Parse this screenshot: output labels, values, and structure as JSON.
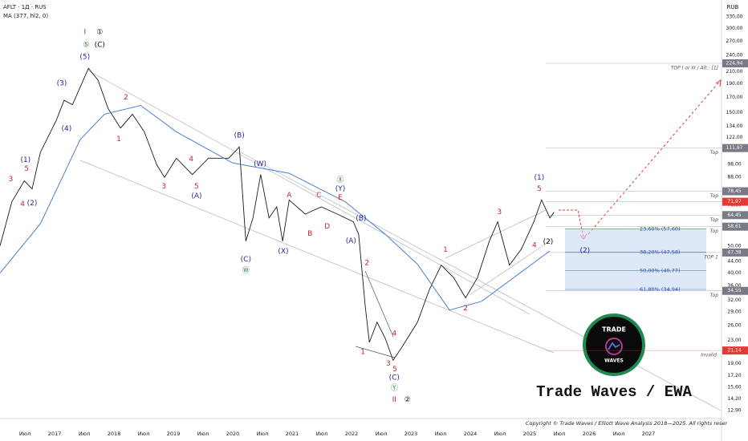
{
  "chart_data": {
    "type": "line",
    "title": "AFLT · 1Д · RUS",
    "currency": "RUB",
    "log": true,
    "xlim": [
      2016.08,
      2028.23
    ],
    "ylim": [
      12.15,
      379
    ],
    "xticks": [
      {
        "value": 2016.5,
        "label": "Июл"
      },
      2017,
      {
        "value": 2017.5,
        "label": "Июл"
      },
      2018,
      {
        "value": 2018.5,
        "label": "Июл"
      },
      2019,
      {
        "value": 2019.5,
        "label": "Июл"
      },
      2020,
      {
        "value": 2020.5,
        "label": "Июл"
      },
      2021,
      {
        "value": 2021.5,
        "label": "Июл"
      },
      2022,
      {
        "value": 2022.5,
        "label": "Июл"
      },
      2023,
      {
        "value": 2023.5,
        "label": "Июл"
      },
      2024,
      {
        "value": 2024.5,
        "label": "Июл"
      },
      2025,
      {
        "value": 2025.5,
        "label": "Июл"
      },
      2026,
      {
        "value": 2026.5,
        "label": "Июл"
      },
      2027
    ],
    "yticks": [
      {
        "value": 330,
        "label": "330,00"
      },
      {
        "value": 300,
        "label": "300,00"
      },
      {
        "value": 270,
        "label": "270,00"
      },
      {
        "value": 240,
        "label": "240,00"
      },
      {
        "value": 210,
        "label": "210,00"
      },
      {
        "value": 190,
        "label": "190,00"
      },
      {
        "value": 170,
        "label": "170,00"
      },
      {
        "value": 150,
        "label": "150,00"
      },
      {
        "value": 134,
        "label": "134,00"
      },
      {
        "value": 122,
        "label": "122,00"
      },
      {
        "value": 98,
        "label": "98,00"
      },
      {
        "value": 88,
        "label": "88,00"
      },
      {
        "value": 70,
        "label": "70,00"
      },
      {
        "value": 50,
        "label": "50,00"
      },
      {
        "value": 44,
        "label": "44,00"
      },
      {
        "value": 40,
        "label": "40,00"
      },
      {
        "value": 36,
        "label": "36,00"
      },
      {
        "value": 32,
        "label": "32,00"
      },
      {
        "value": 29,
        "label": "29,00"
      },
      {
        "value": 26,
        "label": "26,00"
      },
      {
        "value": 23,
        "label": "23,00"
      },
      {
        "value": 19,
        "label": "19,00"
      },
      {
        "value": 17.2,
        "label": "17,20"
      },
      {
        "value": 15.6,
        "label": "15,60"
      },
      {
        "value": 14.2,
        "label": "14,20"
      },
      {
        "value": 12.9,
        "label": "12,90"
      }
    ],
    "series": [
      {
        "color": "#1a1a1a",
        "x": [
          2016.08,
          2016.28,
          2016.49,
          2016.62,
          2016.76,
          2017.03,
          2017.16,
          2017.3,
          2017.57,
          2017.73,
          2017.9,
          2018.11,
          2018.31,
          2018.51,
          2018.72,
          2018.85,
          2019.05,
          2019.32,
          2019.59,
          2019.93,
          2020.11,
          2020.22,
          2020.34,
          2020.47,
          2020.61,
          2020.74,
          2020.84,
          2020.95,
          2021.22,
          2021.49,
          2021.76,
          2022.03,
          2022.12,
          2022.23,
          2022.3,
          2022.43,
          2022.57,
          2022.7,
          2022.84,
          2023.11,
          2023.31,
          2023.51,
          2023.72,
          2023.92,
          2024.12,
          2024.32,
          2024.46,
          2024.66,
          2024.86,
          2025.07,
          2025.2,
          2025.34,
          2025.41
        ],
        "values": [
          50,
          72,
          85.5,
          80,
          108,
          141,
          166,
          160,
          216,
          196,
          155,
          132,
          148,
          128,
          97.6,
          88,
          103,
          90,
          103,
          103,
          113,
          52,
          63,
          90,
          63,
          69,
          52,
          73,
          65,
          69,
          65,
          61,
          55,
          30.6,
          22.6,
          26.7,
          23.3,
          19.5,
          21.6,
          26.7,
          34.9,
          42.7,
          38.5,
          32.6,
          38.5,
          52,
          61,
          42.7,
          48.7,
          61,
          73,
          63,
          66
        ]
      },
      {
        "name": "MA (377, hl2, 0)",
        "color": "#4a7fd4",
        "x": [
          2016.08,
          2016.76,
          2017.43,
          2017.84,
          2018.45,
          2019.05,
          2020.0,
          2020.95,
          2021.89,
          2022.57,
          2023.11,
          2023.65,
          2024.19,
          2024.73,
          2025.34
        ],
        "values": [
          40,
          60,
          120,
          148,
          159,
          128,
          99,
          91,
          72,
          55,
          43,
          29.5,
          31.7,
          38.5,
          48
        ]
      }
    ],
    "levels": [
      {
        "value": 224.94,
        "label": "224,94",
        "note": "TOP I or III / Alt.: [1]",
        "color": "#787b86"
      },
      {
        "value": 111.97,
        "label": "111,97",
        "note": "Top",
        "color": "#787b86"
      },
      {
        "value": 78.45,
        "label": "78,45",
        "note": "Top",
        "color": "#787b86"
      },
      {
        "value": 71.97,
        "label": "71,97",
        "color": "#e53935"
      },
      {
        "value": 64.45,
        "label": "64,45",
        "note": "Top",
        "color": "#787b86"
      },
      {
        "value": 58.61,
        "label": "58,61",
        "note": "Top",
        "color": "#787b86"
      },
      {
        "value": 47.38,
        "label": "47,38",
        "note": "TOP 1",
        "color": "#787b86"
      },
      {
        "value": 34.55,
        "label": "34,55",
        "note": "Top",
        "color": "#787b86"
      },
      {
        "value": 21.14,
        "label": "21,14",
        "note": "Invalid.",
        "color": "#e53935"
      }
    ],
    "fib": {
      "color": "#c9d8f0",
      "levels": [
        {
          "value": 57.6,
          "label": "23,60% (57,60)"
        },
        {
          "value": 47.58,
          "label": "38,20% (47,58)"
        },
        {
          "value": 40.77,
          "label": "50,00% (40,77)"
        },
        {
          "value": 34.94,
          "label": "61,80% (34,94)"
        }
      ]
    },
    "annotations": [
      {
        "text": "I",
        "x": 2017.51,
        "y": 291,
        "color": "#c0272d"
      },
      {
        "text": "①",
        "x": 2017.76,
        "y": 291,
        "color": "#111"
      },
      {
        "text": "⑤",
        "x": 2017.53,
        "y": 262,
        "color": "#2e7d32"
      },
      {
        "text": "(C)",
        "x": 2017.76,
        "y": 262,
        "color": "#111"
      },
      {
        "text": "(5)",
        "x": 2017.51,
        "y": 237,
        "color": "#27279a"
      },
      {
        "text": "(3)",
        "x": 2017.12,
        "y": 190.6,
        "color": "#27279a"
      },
      {
        "text": "(4)",
        "x": 2017.2,
        "y": 131.5,
        "color": "#27279a"
      },
      {
        "text": "2",
        "x": 2018.2,
        "y": 170,
        "color": "#c0272d"
      },
      {
        "text": "1",
        "x": 2018.08,
        "y": 120.6,
        "color": "#c0272d"
      },
      {
        "text": "(1)",
        "x": 2016.51,
        "y": 101.6,
        "color": "#27279a"
      },
      {
        "text": "5",
        "x": 2016.53,
        "y": 94.4,
        "color": "#c0272d"
      },
      {
        "text": "3",
        "x": 2016.26,
        "y": 86.7,
        "color": "#c0272d"
      },
      {
        "text": "4",
        "x": 2016.46,
        "y": 70.6,
        "color": "#c0272d"
      },
      {
        "text": "(2)",
        "x": 2016.62,
        "y": 71.1,
        "color": "#27279a"
      },
      {
        "text": "3",
        "x": 2018.84,
        "y": 81.7,
        "color": "#c0272d"
      },
      {
        "text": "4",
        "x": 2019.3,
        "y": 102.3,
        "color": "#c0272d"
      },
      {
        "text": "5",
        "x": 2019.39,
        "y": 81.7,
        "color": "#c0272d"
      },
      {
        "text": "(A)",
        "x": 2019.39,
        "y": 75.4,
        "color": "#27279a"
      },
      {
        "text": "(B)",
        "x": 2020.11,
        "y": 124,
        "color": "#27279a"
      },
      {
        "text": "(W)",
        "x": 2020.46,
        "y": 98.3,
        "color": "#27279a"
      },
      {
        "text": "(C)",
        "x": 2020.22,
        "y": 44.7,
        "color": "#27279a"
      },
      {
        "text": "Ⓦ",
        "x": 2020.22,
        "y": 40.8,
        "color": "#2e7d32"
      },
      {
        "text": "(X)",
        "x": 2020.85,
        "y": 47.8,
        "color": "#27279a"
      },
      {
        "text": "Ⓧ",
        "x": 2021.81,
        "y": 86.1,
        "color": "#2e7d32"
      },
      {
        "text": "(Y)",
        "x": 2021.81,
        "y": 80.1,
        "color": "#27279a"
      },
      {
        "text": "E",
        "x": 2021.81,
        "y": 74.4,
        "color": "#c0272d"
      },
      {
        "text": "A",
        "x": 2020.95,
        "y": 75.9,
        "color": "#c0272d"
      },
      {
        "text": "C",
        "x": 2021.45,
        "y": 75.9,
        "color": "#c0272d"
      },
      {
        "text": "B",
        "x": 2021.3,
        "y": 55.3,
        "color": "#c0272d"
      },
      {
        "text": "D",
        "x": 2021.59,
        "y": 58.7,
        "color": "#c0272d"
      },
      {
        "text": "(B)",
        "x": 2022.16,
        "y": 62.7,
        "color": "#27279a"
      },
      {
        "text": "(A)",
        "x": 2021.99,
        "y": 52.1,
        "color": "#27279a"
      },
      {
        "text": "2",
        "x": 2022.26,
        "y": 43.5,
        "color": "#c0272d"
      },
      {
        "text": "4",
        "x": 2022.72,
        "y": 24.3,
        "color": "#c0272d"
      },
      {
        "text": "1",
        "x": 2022.19,
        "y": 20.9,
        "color": "#c0272d"
      },
      {
        "text": "3",
        "x": 2022.62,
        "y": 19,
        "color": "#c0272d"
      },
      {
        "text": "5",
        "x": 2022.73,
        "y": 18.1,
        "color": "#c0272d"
      },
      {
        "text": "(C)",
        "x": 2022.72,
        "y": 16.9,
        "color": "#27279a"
      },
      {
        "text": "Ⓨ",
        "x": 2022.72,
        "y": 15.5,
        "color": "#2e7d32"
      },
      {
        "text": "II",
        "x": 2022.72,
        "y": 14.1,
        "color": "#c0272d"
      },
      {
        "text": "②",
        "x": 2022.94,
        "y": 14.1,
        "color": "#111"
      },
      {
        "text": "1",
        "x": 2023.58,
        "y": 48.4,
        "color": "#c0272d"
      },
      {
        "text": "2",
        "x": 2023.92,
        "y": 29.9,
        "color": "#c0272d"
      },
      {
        "text": "3",
        "x": 2024.49,
        "y": 66.1,
        "color": "#c0272d"
      },
      {
        "text": "4",
        "x": 2025.08,
        "y": 50.3,
        "color": "#c0272d"
      },
      {
        "text": "(1)",
        "x": 2025.16,
        "y": 87.8,
        "color": "#27279a"
      },
      {
        "text": "5",
        "x": 2025.16,
        "y": 80.1,
        "color": "#c0272d"
      },
      {
        "text": "(2)",
        "x": 2025.31,
        "y": 51.7,
        "color": "#111"
      },
      {
        "text": "(2)",
        "x": 2025.93,
        "y": 48.1,
        "color": "#27279a"
      }
    ]
  },
  "logo": {
    "top": "TRADE",
    "bottom": "WAVES",
    "brand": "Trade Waves / EWA"
  },
  "copyright": "Copyright © Trade Waves / Elliott Wave Analysis 2018—2025. All rights reser"
}
